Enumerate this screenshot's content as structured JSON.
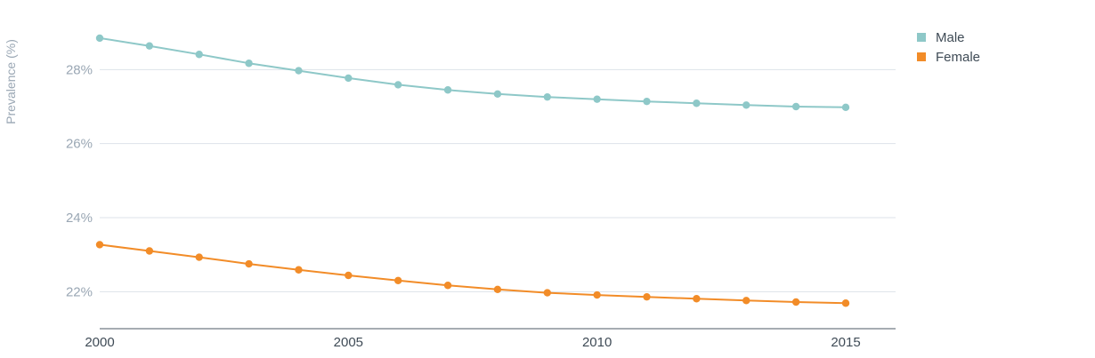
{
  "chart_data": {
    "type": "line",
    "title": "",
    "xlabel": "",
    "ylabel": "Prevalence (%)",
    "x": [
      2000,
      2001,
      2002,
      2003,
      2004,
      2005,
      2006,
      2007,
      2008,
      2009,
      2010,
      2011,
      2012,
      2013,
      2014,
      2015
    ],
    "series": [
      {
        "name": "Male",
        "color": "#8ec8c8",
        "values": [
          28.85,
          28.64,
          28.41,
          28.17,
          27.97,
          27.77,
          27.59,
          27.45,
          27.34,
          27.26,
          27.2,
          27.14,
          27.09,
          27.04,
          27.0,
          26.98
        ]
      },
      {
        "name": "Female",
        "color": "#f28c28",
        "values": [
          23.27,
          23.1,
          22.93,
          22.75,
          22.59,
          22.44,
          22.3,
          22.17,
          22.06,
          21.97,
          21.91,
          21.86,
          21.81,
          21.76,
          21.72,
          21.69
        ]
      }
    ],
    "ylim": [
      21,
      29.4
    ],
    "yticks": [
      {
        "value": 22,
        "label": "22%"
      },
      {
        "value": 24,
        "label": "24%"
      },
      {
        "value": 26,
        "label": "26%"
      },
      {
        "value": 28,
        "label": "28%"
      }
    ],
    "xticks": [
      {
        "value": 2000,
        "label": "2000"
      },
      {
        "value": 2005,
        "label": "2005"
      },
      {
        "value": 2010,
        "label": "2010"
      },
      {
        "value": 2015,
        "label": "2015"
      }
    ],
    "grid": true,
    "legend_position": "top-right"
  }
}
